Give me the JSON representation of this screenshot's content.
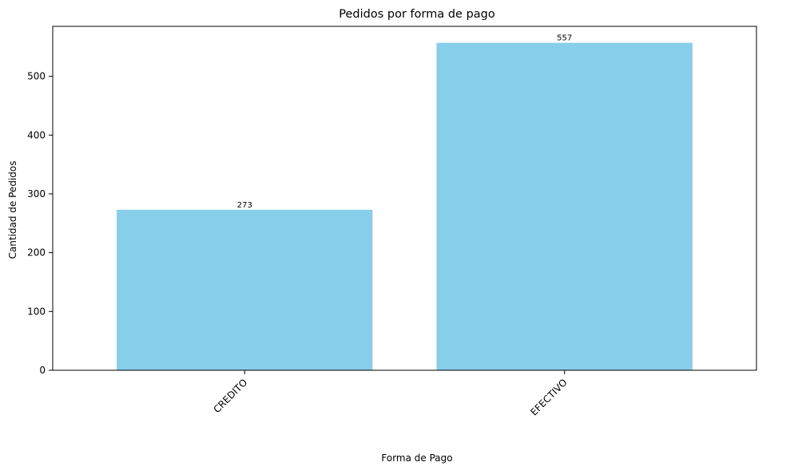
{
  "chart_data": {
    "type": "bar",
    "title": "Pedidos por forma de pago",
    "xlabel": "Forma de Pago",
    "ylabel": "Cantidad de Pedidos",
    "categories": [
      "CREDITO",
      "EFECTIVO"
    ],
    "values": [
      273,
      557
    ],
    "data_labels": [
      "273",
      "557"
    ],
    "ylim": [
      0,
      585
    ],
    "yticks": [
      0,
      100,
      200,
      300,
      400,
      500
    ],
    "ytick_labels": [
      "0",
      "100",
      "200",
      "300",
      "400",
      "500"
    ],
    "bar_color": "#87CEEB",
    "grid": false,
    "legend": "none"
  }
}
